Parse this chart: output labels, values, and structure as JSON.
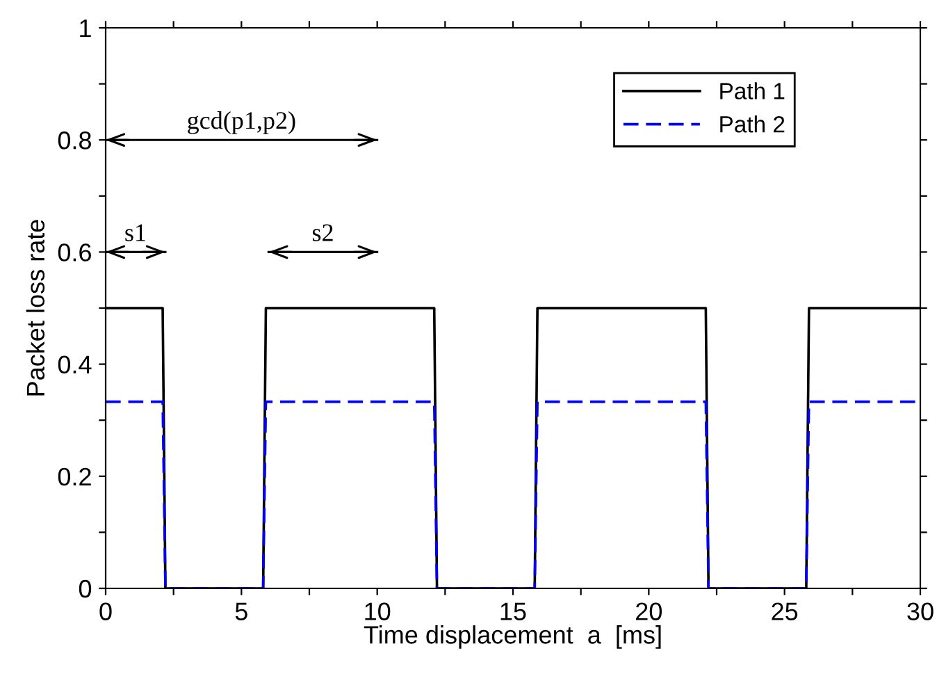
{
  "chart_data": {
    "type": "line",
    "xlabel": "Time displacement  a  [ms]",
    "ylabel": "Packet loss rate",
    "x": [
      0,
      2.1,
      2.2,
      5.8,
      5.9,
      12.1,
      12.2,
      15.8,
      15.9,
      22.1,
      22.2,
      25.8,
      25.9,
      30
    ],
    "series": [
      {
        "name": "Path 1",
        "color": "#000000",
        "line_style": "solid",
        "values": [
          0.5,
          0.5,
          0,
          0,
          0.5,
          0.5,
          0,
          0,
          0.5,
          0.5,
          0,
          0,
          0.5,
          0.5
        ]
      },
      {
        "name": "Path 2",
        "color": "#0000ff",
        "line_style": "dashed",
        "values": [
          0.333,
          0.333,
          0,
          0,
          0.333,
          0.333,
          0,
          0,
          0.333,
          0.333,
          0,
          0,
          0.333,
          0.333
        ]
      },
      {
        "color": "#000000",
        "x": [
          0,
          10
        ],
        "values": [
          0.8,
          0.8
        ]
      },
      {
        "color": "#000000",
        "x": [
          0,
          2.2
        ],
        "values": [
          0.6,
          0.6
        ]
      },
      {
        "color": "#000000",
        "x": [
          6,
          10
        ],
        "values": [
          0.6,
          0.6
        ]
      }
    ],
    "xlim": [
      0,
      30
    ],
    "ylim": [
      0,
      1
    ],
    "xticks": [
      0,
      {
        "value": 2.5,
        "label": null
      },
      5,
      {
        "value": 7.5,
        "label": null
      },
      10,
      {
        "value": 12.5,
        "label": null
      },
      15,
      {
        "value": 17.5,
        "label": null
      },
      20,
      {
        "value": 22.5,
        "label": null
      },
      25,
      {
        "value": 27.5,
        "label": null
      },
      30
    ],
    "yticks": [
      0,
      {
        "value": 0.1,
        "label": null
      },
      0.2,
      {
        "value": 0.3,
        "label": null
      },
      0.4,
      {
        "value": 0.5,
        "label": null
      },
      0.6,
      {
        "value": 0.7,
        "label": null
      },
      0.8,
      {
        "value": 0.9,
        "label": null
      },
      1
    ],
    "annotations": [
      {
        "text": "gcd(p1,p2)",
        "x": 5,
        "y": 0.8
      },
      {
        "text": "s1",
        "x": 1.1,
        "y": 0.6
      },
      {
        "text": "s2",
        "x": 8,
        "y": 0.6
      }
    ],
    "legend": "top right",
    "grid": false,
    "marker": "none"
  }
}
